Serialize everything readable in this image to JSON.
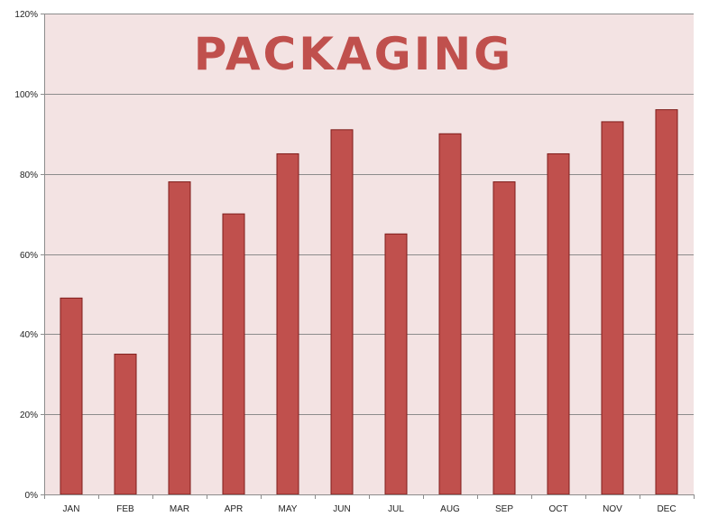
{
  "chart_data": {
    "type": "bar",
    "title": "PACKAGING",
    "xlabel": "",
    "ylabel": "",
    "categories": [
      "JAN",
      "FEB",
      "MAR",
      "APR",
      "MAY",
      "JUN",
      "JUL",
      "AUG",
      "SEP",
      "OCT",
      "NOV",
      "DEC"
    ],
    "values": [
      49,
      35,
      78,
      70,
      85,
      91,
      65,
      90,
      78,
      85,
      93,
      96
    ],
    "value_format": "percent",
    "ylim": [
      0,
      120
    ],
    "yticks": [
      0,
      20,
      40,
      60,
      80,
      100,
      120
    ],
    "ytick_labels": [
      "0%",
      "20%",
      "40%",
      "60%",
      "80%",
      "100%",
      "120%"
    ],
    "grid": true,
    "legend": "none"
  },
  "colors": {
    "bar_fill": "#c0504d",
    "bar_stroke": "#7f1d1b",
    "plot_background": "#f3e3e3",
    "title": "#c0504d",
    "gridline": "#8c8c8c",
    "axis": "#8c8c8c"
  }
}
